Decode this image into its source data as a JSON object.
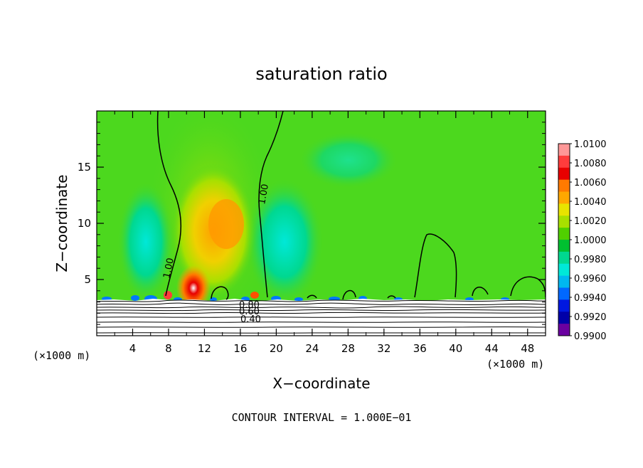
{
  "chart_data": {
    "type": "heatmap",
    "title": "saturation ratio",
    "xlabel": "X−coordinate",
    "ylabel": "Z−coordinate",
    "x_unit_left": "(×1000 m)",
    "x_unit_right": "(×1000 m)",
    "x_ticks": [
      "4",
      "8",
      "12",
      "16",
      "20",
      "24",
      "28",
      "32",
      "36",
      "40",
      "44",
      "48"
    ],
    "y_ticks": [
      "5",
      "10",
      "15"
    ],
    "xlim": [
      0,
      50
    ],
    "ylim": [
      0,
      20
    ],
    "footer": "CONTOUR INTERVAL = 1.000E−01",
    "contour_labels": [
      "1.00",
      "1.00",
      "0.80",
      "0.60",
      "0.40"
    ],
    "colorbar": {
      "labels": [
        "1.0100",
        "1.0080",
        "1.0060",
        "1.0040",
        "1.0020",
        "1.0000",
        "0.9980",
        "0.9960",
        "0.9940",
        "0.9920",
        "0.9900"
      ],
      "colors": [
        "#ff9898",
        "#ff3c3c",
        "#e80000",
        "#ff7a00",
        "#ffa800",
        "#e8e400",
        "#a8e000",
        "#50d000",
        "#00c030",
        "#00d890",
        "#00e8d8",
        "#00b8f0",
        "#0068ff",
        "#0018e0",
        "#0000a8",
        "#6a00a0"
      ]
    },
    "field": {
      "background_value": 1.0,
      "background_color": "#4cd81e",
      "surface_layer_top_z": 3.5
    }
  }
}
